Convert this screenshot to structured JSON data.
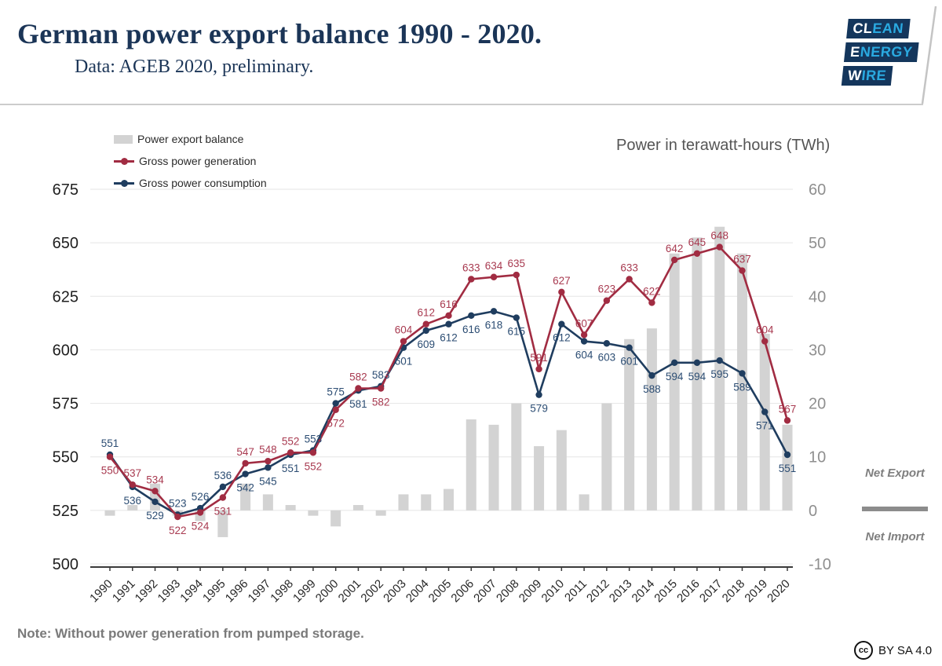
{
  "header": {
    "title": "German power export balance 1990 - 2020.",
    "subtitle": "Data: AGEB 2020, preliminary."
  },
  "logo": {
    "rows": [
      {
        "white": "CL",
        "blue": "EAN"
      },
      {
        "white": "E",
        "blue": "NERGY"
      },
      {
        "white": "W",
        "blue": "IRE"
      }
    ],
    "bg_color": "#14365c",
    "accent_color": "#2aa9e0"
  },
  "legend": {
    "items": [
      {
        "label": "Power export balance",
        "type": "bar",
        "color": "#d3d3d3"
      },
      {
        "label": "Gross power generation",
        "type": "line",
        "color": "#a12c42"
      },
      {
        "label": "Gross power consumption",
        "type": "line",
        "color": "#1f3d5f"
      }
    ]
  },
  "axis_title_right": "Power in terawatt-hours (TWh)",
  "annotations": {
    "net_export": "Net Export",
    "net_import": "Net Import"
  },
  "note": "Note: Without power generation from pumped storage.",
  "license": {
    "icon": "cc",
    "label": "BY SA 4.0"
  },
  "chart_data": {
    "type": "bar+line",
    "title": "German power export balance 1990 - 2020",
    "categories": [
      1990,
      1991,
      1992,
      1993,
      1994,
      1995,
      1996,
      1997,
      1998,
      1999,
      2000,
      2001,
      2002,
      2003,
      2004,
      2005,
      2006,
      2007,
      2008,
      2009,
      2010,
      2011,
      2012,
      2013,
      2014,
      2015,
      2016,
      2017,
      2018,
      2019,
      2020
    ],
    "series": [
      {
        "name": "Power export balance",
        "type": "bar",
        "axis": "right",
        "color": "#d3d3d3",
        "values": [
          -1,
          1,
          5,
          -1,
          -2,
          -5,
          5,
          3,
          1,
          -1,
          -3,
          1,
          -1,
          3,
          3,
          4,
          17,
          16,
          20,
          12,
          15,
          3,
          20,
          32,
          34,
          48,
          51,
          53,
          48,
          33,
          16
        ]
      },
      {
        "name": "Gross power generation",
        "type": "line",
        "axis": "left",
        "color": "#a12c42",
        "label_color": "#a83a50",
        "values": [
          550,
          537,
          534,
          522,
          524,
          531,
          547,
          548,
          552,
          552,
          572,
          582,
          582,
          604,
          612,
          616,
          633,
          634,
          635,
          591,
          627,
          607,
          623,
          633,
          622,
          642,
          645,
          648,
          637,
          604,
          567
        ]
      },
      {
        "name": "Gross power consumption",
        "type": "line",
        "axis": "left",
        "color": "#1f3d5f",
        "label_color": "#2c4d73",
        "values": [
          551,
          536,
          529,
          523,
          526,
          536,
          542,
          545,
          551,
          553,
          575,
          581,
          583,
          601,
          609,
          612,
          616,
          618,
          615,
          579,
          612,
          604,
          603,
          601,
          588,
          594,
          594,
          595,
          589,
          571,
          551
        ]
      }
    ],
    "left_axis": {
      "ticks": [
        675,
        650,
        625,
        600,
        575,
        550,
        525,
        500
      ],
      "range": [
        500,
        675
      ]
    },
    "right_axis": {
      "ticks": [
        60,
        50,
        40,
        30,
        20,
        10,
        0,
        -10
      ],
      "range": [
        -10,
        60
      ]
    },
    "layout": {
      "grid": true,
      "legend_position": "top-left",
      "note": "right axis 0 aligns with left axis 525"
    }
  }
}
